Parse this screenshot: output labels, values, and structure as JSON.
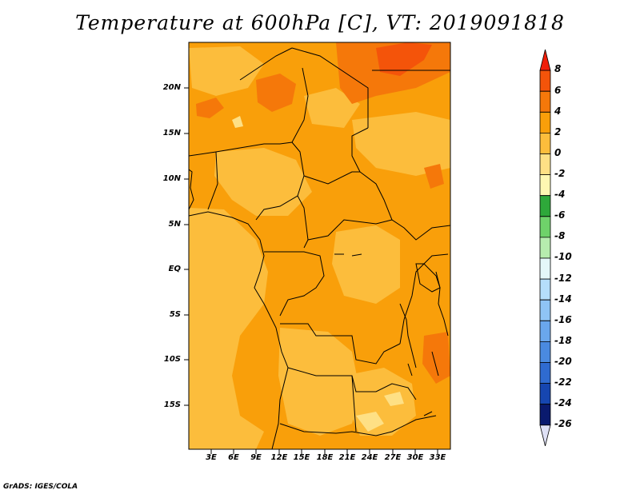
{
  "title": "Temperature at 600hPa [C], VT: 2019091818",
  "credit": "GrADS: IGES/COLA",
  "map": {
    "lat_ticks": [
      "20N",
      "15N",
      "10N",
      "5N",
      "EQ",
      "5S",
      "10S",
      "15S"
    ],
    "lon_ticks": [
      "3E",
      "6E",
      "9E",
      "12E",
      "15E",
      "18E",
      "21E",
      "24E",
      "27E",
      "30E",
      "33E"
    ]
  },
  "colorbar": {
    "labels": [
      "8",
      "6",
      "4",
      "2",
      "0",
      "-2",
      "-4",
      "-6",
      "-8",
      "-10",
      "-12",
      "-14",
      "-16",
      "-18",
      "-20",
      "-22",
      "-24",
      "-26"
    ],
    "colors": [
      "#f01e0a",
      "#f4540a",
      "#f5780a",
      "#f99f0a",
      "#fcbd3c",
      "#fee085",
      "#fef7b2",
      "#2ea83a",
      "#6fd26a",
      "#b6ecae",
      "#e4f7f9",
      "#b5defb",
      "#8fc4f5",
      "#6aa7ec",
      "#4a8ae0",
      "#2f6bd0",
      "#1646b0",
      "#0a1a6e",
      "#dfe1f6"
    ]
  }
}
